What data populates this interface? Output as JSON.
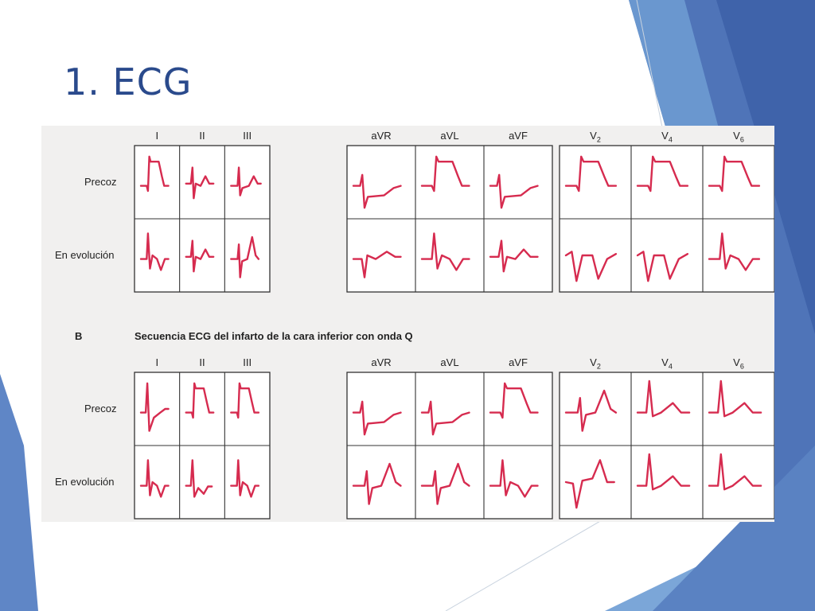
{
  "slide": {
    "title": "1. ECG"
  },
  "colors": {
    "trace": "#d62b4f",
    "title": "#2a4a8c",
    "grid": "#333333"
  },
  "figure": {
    "leads": [
      "I",
      "II",
      "III",
      "aVR",
      "aVL",
      "aVF",
      "V2",
      "V4",
      "V6"
    ],
    "row_labels": {
      "early": "Precoz",
      "evolving": "En evolución"
    },
    "section_b": {
      "letter": "B",
      "caption": "Secuencia ECG del infarto de la cara inferior con onda Q"
    },
    "panels": [
      {
        "id": "A",
        "early": [
          "st-elevation",
          "biphasic",
          "small-upright",
          "st-depression",
          "st-elevation",
          "st-depression",
          "st-elevation",
          "st-elevation",
          "st-elevation"
        ],
        "evolving": [
          "inverted-t",
          "biphasic",
          "upright",
          "q-small-t",
          "inverted-t",
          "biphasic",
          "deep-inverted",
          "deep-inverted",
          "inverted-t"
        ]
      },
      {
        "id": "B",
        "early": [
          "q-st-elevation",
          "st-elevation",
          "st-elevation",
          "st-depression",
          "st-depression",
          "st-elevation",
          "upright",
          "tall-r",
          "tall-r"
        ],
        "evolving": [
          "inverted-t",
          "q-inverted-t",
          "inverted-t",
          "upright",
          "upright",
          "inverted-t",
          "q-tall-t",
          "tall-r",
          "tall-r"
        ]
      }
    ]
  }
}
